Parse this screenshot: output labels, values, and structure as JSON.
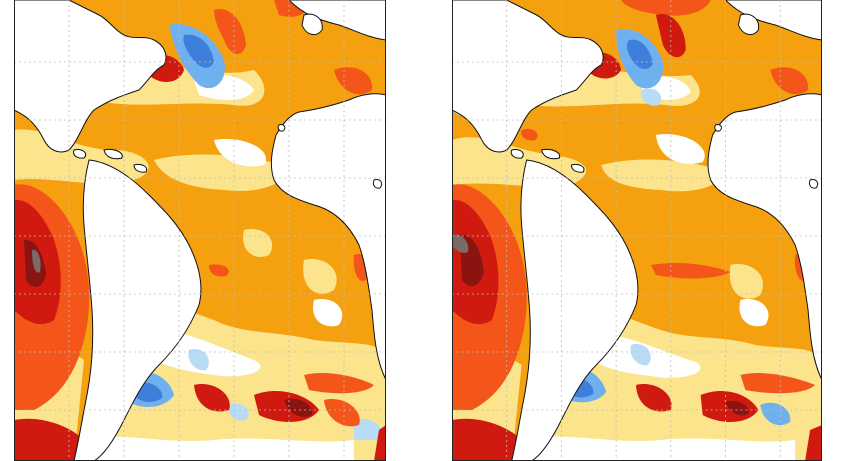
{
  "figure": {
    "panels": [
      {
        "id": "left"
      },
      {
        "id": "right"
      }
    ],
    "palette": {
      "ocean_base": "#f5a10f",
      "warm_light": "#fce48c",
      "warm_mid": "#f5a10f",
      "warm_strong": "#f4561a",
      "warm_extreme": "#d01a10",
      "warm_max": "#8a1410",
      "saturated": "#7a6a68",
      "neutral": "#ffffff",
      "cool_light": "#b8dcf6",
      "cool_mid": "#6fb0ee",
      "cool_strong": "#3f7fdc",
      "cool_extreme": "#6a5cc8",
      "land": "#ffffff",
      "coastline": "#111111",
      "grid": "#bdbdbd"
    }
  }
}
